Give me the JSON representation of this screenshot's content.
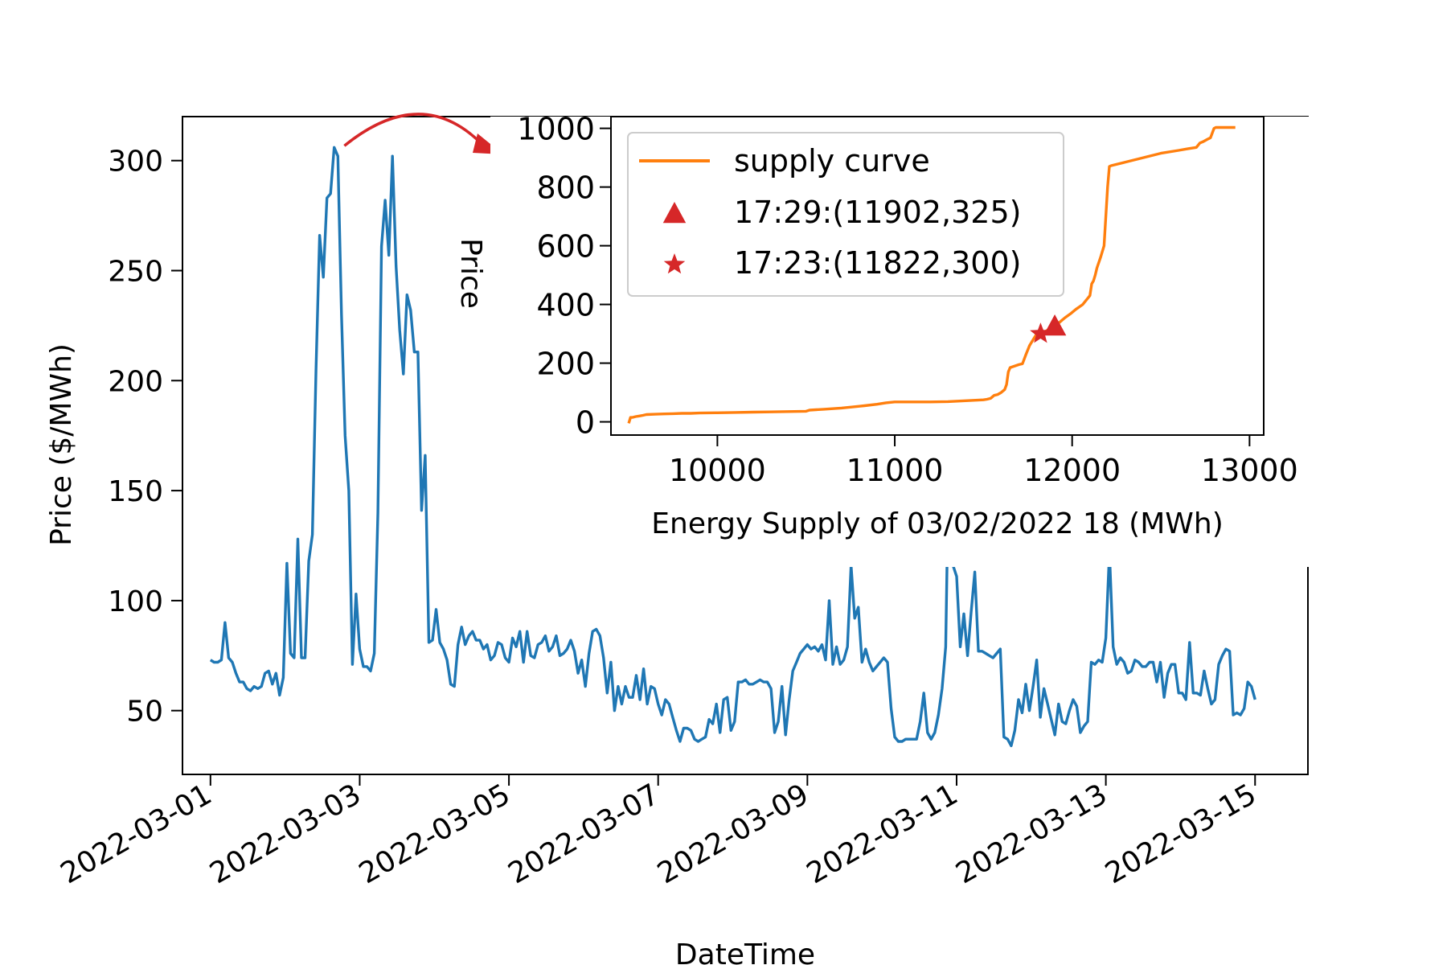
{
  "colors": {
    "main_series": "#1f77b4",
    "supply_curve": "#ff7f0e",
    "markers": "#d62728",
    "arrow": "#d62728"
  },
  "chart_data": [
    {
      "type": "line",
      "title": "",
      "xlabel": "DateTime",
      "ylabel": "Price ($/MWh)",
      "x_start": "2022-03-01",
      "x_end": "2022-03-15",
      "xlim": [
        "2022-02-28 15:00",
        "2022-03-15 17:00"
      ],
      "ylim": [
        21,
        320
      ],
      "xticks": [
        "2022-03-01",
        "2022-03-03",
        "2022-03-05",
        "2022-03-07",
        "2022-03-09",
        "2022-03-11",
        "2022-03-13",
        "2022-03-15"
      ],
      "yticks": [
        50,
        100,
        150,
        200,
        250,
        300
      ],
      "series": [
        {
          "values": [
            73,
            72,
            72,
            73,
            90,
            74,
            72,
            67,
            63,
            63,
            60,
            59,
            61,
            60,
            61,
            67,
            68,
            62,
            67,
            57,
            65,
            117,
            76,
            74,
            128,
            74,
            74,
            118,
            130,
            205,
            266,
            247,
            283,
            285,
            306,
            302,
            230,
            175,
            150,
            71,
            103,
            78,
            70,
            70,
            68,
            76,
            140,
            261,
            282,
            257,
            302,
            252,
            223,
            203,
            239,
            232,
            213,
            213,
            141,
            166,
            81,
            82,
            96,
            81,
            78,
            73,
            62,
            61,
            80,
            88,
            80,
            84,
            86,
            82,
            82,
            78,
            80,
            73,
            75,
            81,
            80,
            74,
            72,
            83,
            79,
            86,
            72,
            86,
            75,
            74,
            80,
            81,
            84,
            77,
            79,
            84,
            75,
            76,
            78,
            82,
            77,
            67,
            73,
            61,
            76,
            86,
            87,
            84,
            74,
            58,
            72,
            50,
            61,
            53,
            61,
            56,
            56,
            66,
            55,
            69,
            53,
            61,
            60,
            53,
            48,
            55,
            53,
            47,
            41,
            36,
            42,
            42,
            41,
            37,
            36,
            37,
            38,
            46,
            44,
            53,
            40,
            55,
            56,
            41,
            45,
            63,
            63,
            64,
            62,
            62,
            63,
            64,
            63,
            63,
            60,
            40,
            45,
            61,
            39,
            55,
            68,
            72,
            76,
            78,
            80,
            78,
            79,
            77,
            80,
            73,
            100,
            71,
            79,
            71,
            73,
            79,
            116,
            92,
            97,
            72,
            78,
            72,
            68,
            70,
            72,
            74,
            72,
            51,
            38,
            36,
            36,
            37,
            37,
            37,
            37,
            45,
            58,
            40,
            37,
            40,
            48,
            60,
            79,
            180,
            116,
            111,
            79,
            94,
            75,
            95,
            113,
            77,
            77,
            76,
            75,
            74,
            76,
            78,
            38,
            37,
            34,
            41,
            55,
            49,
            62,
            50,
            61,
            73,
            47,
            60,
            53,
            46,
            39,
            53,
            45,
            44,
            50,
            55,
            52,
            40,
            43,
            45,
            72,
            71,
            73,
            72,
            83,
            122,
            79,
            71,
            74,
            72,
            67,
            68,
            73,
            72,
            70,
            70,
            72,
            72,
            63,
            72,
            56,
            67,
            71,
            71,
            58,
            58,
            55,
            81,
            58,
            58,
            57,
            68,
            60,
            53,
            55,
            71,
            75,
            78,
            77,
            48,
            49,
            48,
            51,
            63,
            61,
            55
          ]
        }
      ],
      "annotation": {
        "type": "curved-arrow",
        "from_x": "2022-03-02 17:00",
        "from_y": 306,
        "label": ""
      }
    },
    {
      "type": "line",
      "title": "",
      "xlabel": "Energy Supply of 03/02/2022 18 (MWh)",
      "ylabel": "Price",
      "xlim": [
        9400,
        13080
      ],
      "ylim": [
        -45,
        1040
      ],
      "xticks": [
        10000,
        11000,
        12000,
        13000
      ],
      "yticks": [
        0,
        200,
        400,
        600,
        800,
        1000
      ],
      "legend_position": "top-left",
      "series": [
        {
          "name": "supply curve",
          "x": [
            9500,
            9510,
            9520,
            9540,
            9560,
            9580,
            9600,
            9650,
            9700,
            9750,
            9800,
            9850,
            9900,
            10000,
            10100,
            10200,
            10300,
            10400,
            10500,
            10520,
            10600,
            10700,
            10750,
            10800,
            10830,
            10900,
            10950,
            11000,
            11100,
            11200,
            11300,
            11400,
            11500,
            11520,
            11540,
            11560,
            11580,
            11600,
            11620,
            11630,
            11640,
            11650,
            11700,
            11720,
            11740,
            11760,
            11800,
            11822,
            11860,
            11902,
            11940,
            11960,
            11990,
            12020,
            12060,
            12100,
            12110,
            12120,
            12130,
            12140,
            12160,
            12180,
            12190,
            12200,
            12210,
            12220,
            12300,
            12400,
            12500,
            12600,
            12650,
            12700,
            12720,
            12740,
            12760,
            12780,
            12800,
            12810,
            12820,
            12830,
            12850,
            12920
          ],
          "values": [
            -5,
            15,
            15,
            18,
            20,
            22,
            25,
            26,
            27,
            28,
            29,
            29,
            30,
            31,
            32,
            33,
            34,
            35,
            36,
            40,
            43,
            47,
            50,
            53,
            55,
            60,
            65,
            68,
            68,
            68,
            69,
            72,
            75,
            77,
            80,
            90,
            93,
            100,
            110,
            127,
            170,
            185,
            195,
            198,
            230,
            260,
            300,
            300,
            312,
            325,
            345,
            355,
            368,
            383,
            400,
            430,
            470,
            480,
            500,
            525,
            560,
            600,
            700,
            800,
            870,
            873,
            885,
            900,
            915,
            925,
            930,
            935,
            950,
            955,
            962,
            968,
            1000,
            1003,
            1003,
            1003,
            1003,
            1003
          ]
        }
      ],
      "markers": [
        {
          "label": "17:29:(11902,325)",
          "shape": "triangle",
          "x": 11902,
          "y": 325
        },
        {
          "label": "17:23:(11822,300)",
          "shape": "star",
          "x": 11822,
          "y": 300
        }
      ]
    }
  ]
}
